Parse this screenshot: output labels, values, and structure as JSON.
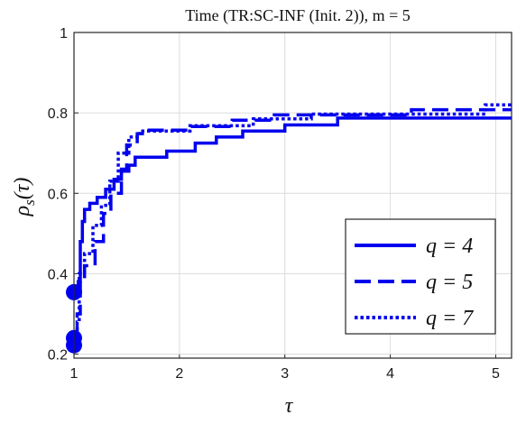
{
  "chart_data": {
    "type": "line",
    "title": "Time (TR:SC-INF (Init. 2)), m = 5",
    "xlabel": "τ",
    "ylabel": "ρ_s(τ)",
    "xlim": [
      1,
      5.15
    ],
    "ylim": [
      0.19,
      1.0
    ],
    "xticks": [
      1,
      2,
      3,
      4,
      5
    ],
    "yticks": [
      0.2,
      0.4,
      0.6,
      0.8,
      1
    ],
    "xtick_labels": [
      "1",
      "2",
      "3",
      "4",
      "5"
    ],
    "ytick_labels": [
      "0.2",
      "0.4",
      "0.6",
      "0.8",
      "1"
    ],
    "grid": true,
    "legend_position": "bottom-right",
    "line_color": "#0000ee",
    "series": [
      {
        "name": "q = 4",
        "style": "solid",
        "marker_start": 0.354,
        "points": [
          [
            1.0,
            0.354
          ],
          [
            1.04,
            0.354
          ],
          [
            1.04,
            0.38
          ],
          [
            1.06,
            0.38
          ],
          [
            1.06,
            0.48
          ],
          [
            1.08,
            0.48
          ],
          [
            1.08,
            0.53
          ],
          [
            1.1,
            0.53
          ],
          [
            1.1,
            0.56
          ],
          [
            1.15,
            0.56
          ],
          [
            1.15,
            0.575
          ],
          [
            1.22,
            0.575
          ],
          [
            1.22,
            0.59
          ],
          [
            1.3,
            0.59
          ],
          [
            1.3,
            0.61
          ],
          [
            1.38,
            0.61
          ],
          [
            1.38,
            0.635
          ],
          [
            1.45,
            0.635
          ],
          [
            1.45,
            0.655
          ],
          [
            1.52,
            0.655
          ],
          [
            1.52,
            0.67
          ],
          [
            1.58,
            0.67
          ],
          [
            1.58,
            0.69
          ],
          [
            1.88,
            0.69
          ],
          [
            1.88,
            0.705
          ],
          [
            2.15,
            0.705
          ],
          [
            2.15,
            0.725
          ],
          [
            2.35,
            0.725
          ],
          [
            2.35,
            0.74
          ],
          [
            2.6,
            0.74
          ],
          [
            2.6,
            0.755
          ],
          [
            3.0,
            0.755
          ],
          [
            3.0,
            0.77
          ],
          [
            3.5,
            0.77
          ],
          [
            3.5,
            0.787
          ],
          [
            5.15,
            0.787
          ]
        ]
      },
      {
        "name": "q = 5",
        "style": "dashed",
        "marker_start": 0.24,
        "points": [
          [
            1.0,
            0.24
          ],
          [
            1.03,
            0.24
          ],
          [
            1.03,
            0.3
          ],
          [
            1.06,
            0.3
          ],
          [
            1.06,
            0.38
          ],
          [
            1.1,
            0.38
          ],
          [
            1.1,
            0.42
          ],
          [
            1.2,
            0.42
          ],
          [
            1.2,
            0.48
          ],
          [
            1.28,
            0.48
          ],
          [
            1.28,
            0.55
          ],
          [
            1.35,
            0.55
          ],
          [
            1.35,
            0.6
          ],
          [
            1.45,
            0.6
          ],
          [
            1.45,
            0.66
          ],
          [
            1.5,
            0.66
          ],
          [
            1.5,
            0.72
          ],
          [
            1.6,
            0.72
          ],
          [
            1.6,
            0.748
          ],
          [
            1.68,
            0.748
          ],
          [
            1.68,
            0.757
          ],
          [
            2.1,
            0.757
          ],
          [
            2.1,
            0.766
          ],
          [
            2.5,
            0.766
          ],
          [
            2.5,
            0.782
          ],
          [
            2.9,
            0.782
          ],
          [
            2.9,
            0.795
          ],
          [
            4.2,
            0.795
          ],
          [
            4.2,
            0.808
          ],
          [
            5.15,
            0.808
          ]
        ]
      },
      {
        "name": "q = 7",
        "style": "dotted",
        "marker_start": 0.222,
        "points": [
          [
            1.0,
            0.222
          ],
          [
            1.03,
            0.222
          ],
          [
            1.03,
            0.28
          ],
          [
            1.05,
            0.28
          ],
          [
            1.05,
            0.4
          ],
          [
            1.1,
            0.4
          ],
          [
            1.1,
            0.45
          ],
          [
            1.18,
            0.45
          ],
          [
            1.18,
            0.52
          ],
          [
            1.26,
            0.52
          ],
          [
            1.26,
            0.57
          ],
          [
            1.34,
            0.57
          ],
          [
            1.34,
            0.63
          ],
          [
            1.42,
            0.63
          ],
          [
            1.42,
            0.7
          ],
          [
            1.52,
            0.7
          ],
          [
            1.52,
            0.74
          ],
          [
            1.62,
            0.74
          ],
          [
            1.62,
            0.755
          ],
          [
            2.1,
            0.755
          ],
          [
            2.1,
            0.768
          ],
          [
            2.7,
            0.768
          ],
          [
            2.7,
            0.785
          ],
          [
            3.25,
            0.785
          ],
          [
            3.25,
            0.797
          ],
          [
            4.9,
            0.797
          ],
          [
            4.9,
            0.82
          ],
          [
            5.15,
            0.82
          ]
        ]
      }
    ]
  }
}
